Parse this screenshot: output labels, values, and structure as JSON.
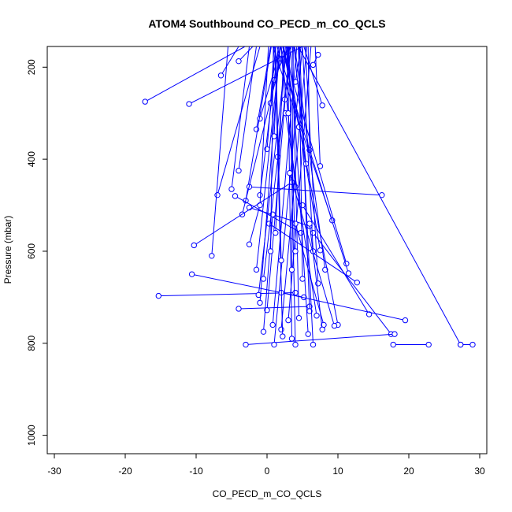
{
  "chart_data": {
    "type": "line",
    "title": "ATOM4 Southbound CO_PECD_m_CO_QCLS",
    "xlabel": "CO_PECD_m_CO_QCLS",
    "ylabel": "Pressure (mbar)",
    "xlim": [
      -31,
      31
    ],
    "ylim": [
      1040,
      155
    ],
    "y_reversed": true,
    "x_ticks": [
      -30,
      -20,
      -10,
      0,
      10,
      20,
      30
    ],
    "y_ticks": [
      200,
      400,
      600,
      800,
      1000
    ],
    "x_tick_labels": [
      "-30",
      "-20",
      "-10",
      "0",
      "10",
      "20",
      "30"
    ],
    "y_tick_labels": [
      "200",
      "400",
      "600",
      "800",
      "1000"
    ],
    "grid": false,
    "legend": "none",
    "color": "#0000ff",
    "marker": "open-circle",
    "series": [
      {
        "points": [
          [
            -17.2,
            275
          ],
          [
            -3.1,
            155
          ]
        ]
      },
      {
        "points": [
          [
            -11.0,
            280
          ],
          [
            5.0,
            155
          ]
        ]
      },
      {
        "points": [
          [
            -6.5,
            218
          ],
          [
            -4.0,
            155
          ]
        ]
      },
      {
        "points": [
          [
            -4.0,
            187
          ],
          [
            -2.0,
            155
          ]
        ]
      },
      {
        "points": [
          [
            -1.5,
            335
          ],
          [
            0.5,
            155
          ]
        ]
      },
      {
        "points": [
          [
            -1.0,
            312
          ],
          [
            2.0,
            155
          ]
        ]
      },
      {
        "points": [
          [
            0.0,
            378
          ],
          [
            1.2,
            155
          ]
        ]
      },
      {
        "points": [
          [
            0.5,
            278
          ],
          [
            1.0,
            155
          ]
        ]
      },
      {
        "points": [
          [
            1.0,
            228
          ],
          [
            3.0,
            155
          ]
        ]
      },
      {
        "points": [
          [
            2.0,
            182
          ],
          [
            3.5,
            155
          ]
        ]
      },
      {
        "points": [
          [
            4.0,
            232
          ],
          [
            4.8,
            155
          ]
        ]
      },
      {
        "points": [
          [
            6.5,
            195
          ],
          [
            7.2,
            173
          ]
        ]
      },
      {
        "points": [
          [
            7.8,
            283
          ],
          [
            5.2,
            155
          ]
        ]
      },
      {
        "points": [
          [
            6.0,
            380
          ],
          [
            5.8,
            155
          ]
        ]
      },
      {
        "points": [
          [
            7.5,
            415
          ],
          [
            6.8,
            155
          ]
        ]
      },
      {
        "points": [
          [
            4.0,
            460
          ],
          [
            2.0,
            155
          ]
        ]
      },
      {
        "points": [
          [
            -4.0,
            425
          ],
          [
            -1.5,
            155
          ]
        ]
      },
      {
        "points": [
          [
            -7.0,
            478
          ],
          [
            -1.0,
            155
          ]
        ]
      },
      {
        "points": [
          [
            -5.0,
            465
          ],
          [
            -2.5,
            155
          ]
        ]
      },
      {
        "points": [
          [
            -3.0,
            490
          ],
          [
            0.6,
            155
          ]
        ]
      },
      {
        "points": [
          [
            -2.5,
            460
          ],
          [
            16.2,
            478
          ]
        ]
      },
      {
        "points": [
          [
            -1.0,
            478
          ],
          [
            1.6,
            155
          ]
        ]
      },
      {
        "points": [
          [
            1.5,
            395
          ],
          [
            2.6,
            155
          ]
        ]
      },
      {
        "points": [
          [
            -4.5,
            480
          ],
          [
            4.8,
            560
          ]
        ]
      },
      {
        "points": [
          [
            -3.5,
            520
          ],
          [
            2.4,
            155
          ]
        ]
      },
      {
        "points": [
          [
            -2.5,
            505
          ],
          [
            6.0,
            545
          ]
        ]
      },
      {
        "points": [
          [
            9.2,
            533
          ],
          [
            0.8,
            155
          ]
        ]
      },
      {
        "points": [
          [
            -2.5,
            585
          ],
          [
            -1.0,
            500
          ],
          [
            0.2,
            155
          ]
        ]
      },
      {
        "points": [
          [
            -10.3,
            587
          ],
          [
            3.5,
            450
          ]
        ]
      },
      {
        "points": [
          [
            -7.8,
            610
          ],
          [
            -5.5,
            155
          ]
        ]
      },
      {
        "points": [
          [
            -10.6,
            650
          ],
          [
            5.2,
            700
          ]
        ]
      },
      {
        "points": [
          [
            -15.3,
            697
          ],
          [
            4.0,
            690
          ]
        ]
      },
      {
        "points": [
          [
            -4.0,
            725
          ],
          [
            6.0,
            720
          ]
        ]
      },
      {
        "points": [
          [
            -1.2,
            695
          ],
          [
            2.8,
            155
          ]
        ]
      },
      {
        "points": [
          [
            -1.0,
            712
          ],
          [
            1.8,
            155
          ]
        ]
      },
      {
        "points": [
          [
            0.0,
            728
          ],
          [
            3.2,
            155
          ]
        ]
      },
      {
        "points": [
          [
            0.8,
            760
          ],
          [
            4.2,
            155
          ]
        ]
      },
      {
        "points": [
          [
            2.0,
            770
          ],
          [
            5.6,
            155
          ]
        ]
      },
      {
        "points": [
          [
            3.0,
            750
          ],
          [
            6.2,
            155
          ]
        ]
      },
      {
        "points": [
          [
            4.5,
            745
          ],
          [
            3.6,
            155
          ]
        ]
      },
      {
        "points": [
          [
            6.0,
            730
          ],
          [
            4.6,
            155
          ]
        ]
      },
      {
        "points": [
          [
            7.2,
            670
          ],
          [
            5.4,
            155
          ]
        ]
      },
      {
        "points": [
          [
            8.2,
            640
          ],
          [
            3.9,
            155
          ]
        ]
      },
      {
        "points": [
          [
            11.2,
            627
          ],
          [
            2.2,
            155
          ]
        ]
      },
      {
        "points": [
          [
            11.5,
            648
          ],
          [
            1.4,
            155
          ]
        ]
      },
      {
        "points": [
          [
            12.7,
            668
          ],
          [
            0.3,
            540
          ]
        ]
      },
      {
        "points": [
          [
            10.0,
            760
          ],
          [
            2.3,
            155
          ]
        ]
      },
      {
        "points": [
          [
            14.4,
            737
          ],
          [
            5.0,
            500
          ]
        ]
      },
      {
        "points": [
          [
            17.5,
            780
          ],
          [
            6.5,
            560
          ]
        ]
      },
      {
        "points": [
          [
            19.5,
            750
          ],
          [
            2.0,
            690
          ]
        ]
      },
      {
        "points": [
          [
            -3.0,
            803
          ],
          [
            18.0,
            780
          ]
        ]
      },
      {
        "points": [
          [
            1.0,
            803
          ],
          [
            5.0,
            155
          ]
        ]
      },
      {
        "points": [
          [
            4.0,
            803
          ],
          [
            3.1,
            155
          ]
        ]
      },
      {
        "points": [
          [
            6.5,
            803
          ],
          [
            4.4,
            155
          ]
        ]
      },
      {
        "points": [
          [
            17.8,
            803
          ],
          [
            22.8,
            803
          ]
        ]
      },
      {
        "points": [
          [
            27.3,
            803
          ],
          [
            29.0,
            803
          ]
        ]
      },
      {
        "points": [
          [
            27.3,
            803
          ],
          [
            4.4,
            155
          ]
        ]
      },
      {
        "points": [
          [
            2.2,
            785
          ],
          [
            1.1,
            155
          ]
        ]
      },
      {
        "points": [
          [
            3.5,
            790
          ],
          [
            2.9,
            155
          ]
        ]
      },
      {
        "points": [
          [
            5.8,
            780
          ],
          [
            3.3,
            155
          ]
        ]
      },
      {
        "points": [
          [
            -0.5,
            775
          ],
          [
            0.8,
            520
          ]
        ]
      },
      {
        "points": [
          [
            8.0,
            760
          ],
          [
            4.0,
            540
          ]
        ]
      },
      {
        "points": [
          [
            7.0,
            740
          ],
          [
            2.6,
            300
          ]
        ]
      },
      {
        "points": [
          [
            2.5,
            270
          ],
          [
            2.0,
            155
          ]
        ]
      },
      {
        "points": [
          [
            3.0,
            300
          ],
          [
            2.8,
            155
          ]
        ]
      },
      {
        "points": [
          [
            1.0,
            350
          ],
          [
            1.6,
            155
          ]
        ]
      },
      {
        "points": [
          [
            4.5,
            330
          ],
          [
            2.2,
            155
          ]
        ]
      },
      {
        "points": [
          [
            5.5,
            410
          ],
          [
            3.8,
            155
          ]
        ]
      },
      {
        "points": [
          [
            4.0,
            600
          ],
          [
            3.0,
            155
          ]
        ]
      },
      {
        "points": [
          [
            2.0,
            620
          ],
          [
            1.2,
            155
          ]
        ]
      },
      {
        "points": [
          [
            1.2,
            560
          ],
          [
            2.4,
            155
          ]
        ]
      },
      {
        "points": [
          [
            3.5,
            640
          ],
          [
            3.7,
            155
          ]
        ]
      },
      {
        "points": [
          [
            5.0,
            660
          ],
          [
            4.5,
            155
          ]
        ]
      },
      {
        "points": [
          [
            0.5,
            600
          ],
          [
            0.9,
            155
          ]
        ]
      },
      {
        "points": [
          [
            6.5,
            600
          ],
          [
            5.0,
            155
          ]
        ]
      },
      {
        "points": [
          [
            7.5,
            598
          ],
          [
            2.7,
            155
          ]
        ]
      },
      {
        "points": [
          [
            -1.5,
            640
          ],
          [
            1.9,
            155
          ]
        ]
      },
      {
        "points": [
          [
            -0.5,
            660
          ],
          [
            3.4,
            155
          ]
        ]
      },
      {
        "points": [
          [
            7.8,
            770
          ],
          [
            6.0,
            540
          ]
        ]
      },
      {
        "points": [
          [
            9.5,
            762
          ],
          [
            3.2,
            430
          ]
        ]
      }
    ]
  }
}
